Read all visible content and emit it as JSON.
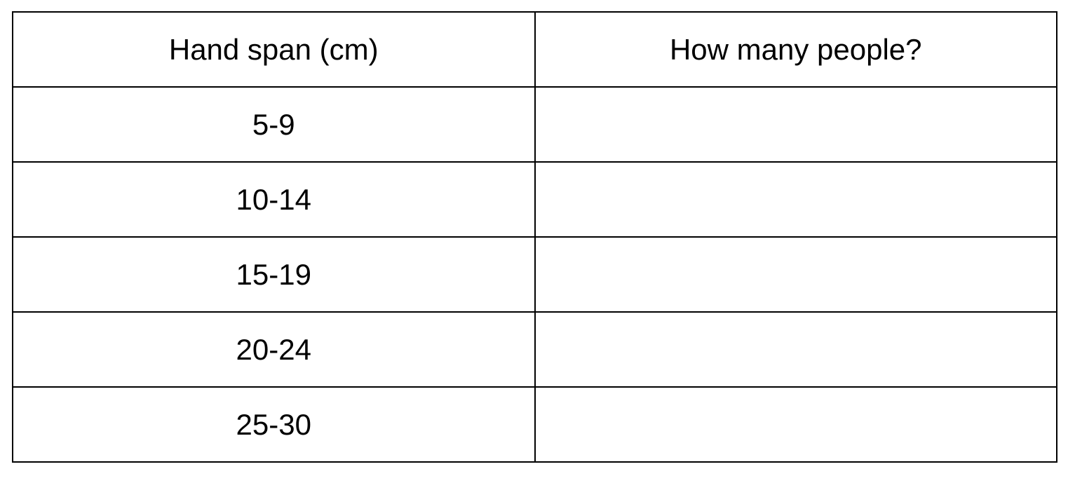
{
  "page": {
    "background_color": "#ffffff",
    "border_color": "#000000",
    "text_color": "#000000"
  },
  "table": {
    "header": {
      "col1": "Hand span (cm)",
      "col2": "How many people?"
    },
    "rows": [
      {
        "hand_span": "5-9",
        "count": ""
      },
      {
        "hand_span": "10-14",
        "count": ""
      },
      {
        "hand_span": "15-19",
        "count": ""
      },
      {
        "hand_span": "20-24",
        "count": ""
      },
      {
        "hand_span": "25-30",
        "count": ""
      }
    ]
  }
}
